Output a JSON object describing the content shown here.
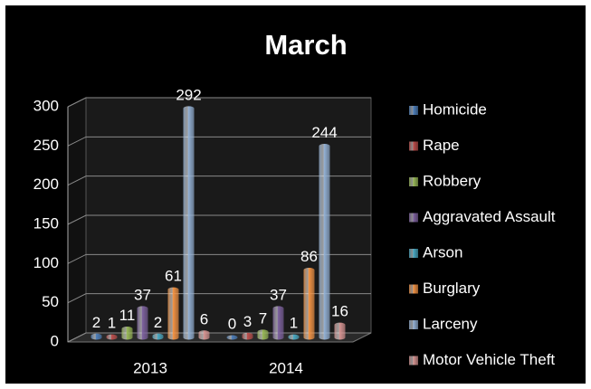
{
  "chart_data": {
    "type": "bar",
    "title": "March",
    "categories": [
      "2013",
      "2014"
    ],
    "series": [
      {
        "name": "Homicide",
        "color": "#4f81bd",
        "values": [
          2,
          0
        ]
      },
      {
        "name": "Rape",
        "color": "#c0504d",
        "values": [
          1,
          3
        ]
      },
      {
        "name": "Robbery",
        "color": "#9bbb59",
        "values": [
          11,
          7
        ]
      },
      {
        "name": "Aggravated Assault",
        "color": "#8064a2",
        "values": [
          37,
          37
        ]
      },
      {
        "name": "Arson",
        "color": "#4bacc6",
        "values": [
          2,
          1
        ]
      },
      {
        "name": "Burglary",
        "color": "#f79646",
        "values": [
          61,
          86
        ]
      },
      {
        "name": "Larceny",
        "color": "#95b3d7",
        "values": [
          292,
          244
        ]
      },
      {
        "name": "Motor Vehicle Theft",
        "color": "#d99694",
        "values": [
          6,
          16
        ]
      }
    ],
    "ylim": [
      0,
      300
    ],
    "yticks": [
      0,
      50,
      100,
      150,
      200,
      250,
      300
    ],
    "grid": true,
    "legend": "right"
  }
}
